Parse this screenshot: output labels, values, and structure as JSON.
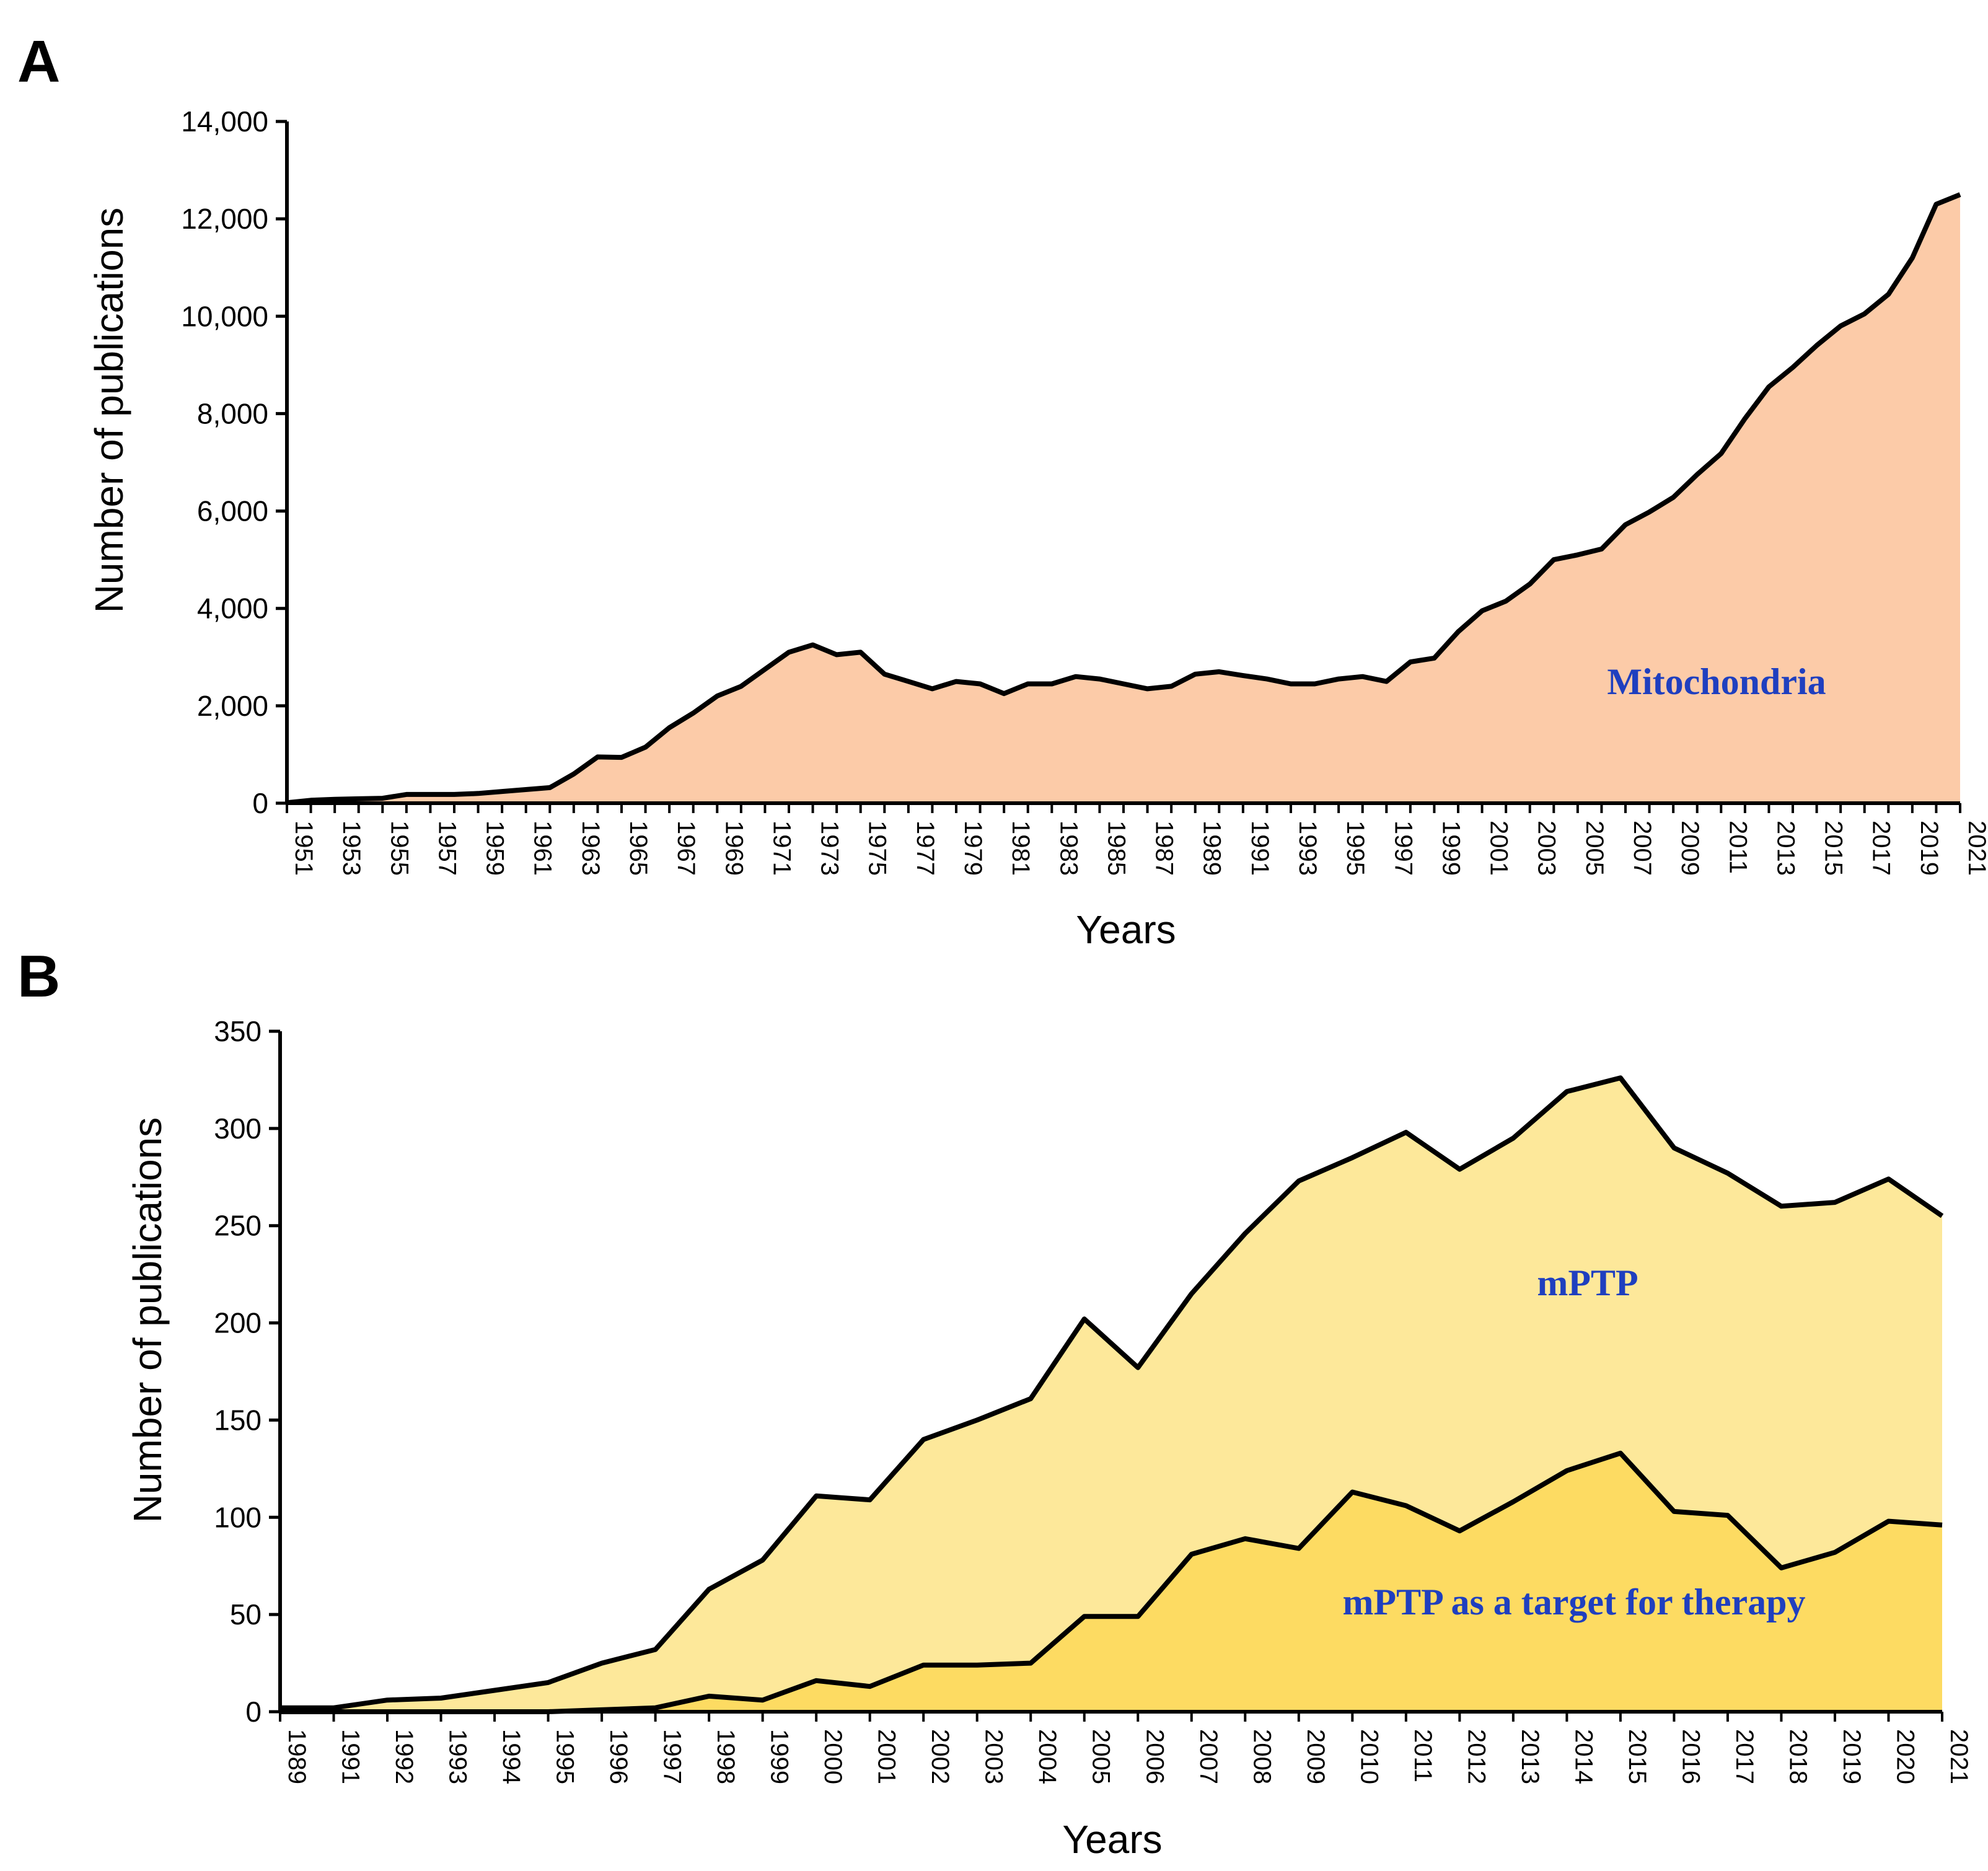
{
  "chart_data": [
    {
      "panel": "A",
      "type": "area",
      "ylabel": "Number of publications",
      "xlabel": "Years",
      "ylim": [
        0,
        14000
      ],
      "yticks": [
        "0",
        "2,000",
        "4,000",
        "6,000",
        "8,000",
        "10,000",
        "12,000",
        "14,000"
      ],
      "ytick_values": [
        0,
        2000,
        4000,
        6000,
        8000,
        10000,
        12000,
        14000
      ],
      "xtick_labels": [
        "1951",
        "1953",
        "1955",
        "1957",
        "1959",
        "1961",
        "1963",
        "1965",
        "1967",
        "1969",
        "1971",
        "1973",
        "1975",
        "1977",
        "1979",
        "1981",
        "1983",
        "1985",
        "1987",
        "1989",
        "1991",
        "1993",
        "1995",
        "1997",
        "1999",
        "2001",
        "2003",
        "2005",
        "2007",
        "2009",
        "2011",
        "2013",
        "2015",
        "2017",
        "2019",
        "2021"
      ],
      "colors": {
        "fill": "#FCCBA8",
        "stroke": "#000000",
        "annotation": "#1F3FBF"
      },
      "series": [
        {
          "name": "Mitochondria",
          "x": [
            1951,
            1952,
            1953,
            1954,
            1955,
            1956,
            1957,
            1958,
            1959,
            1960,
            1961,
            1962,
            1963,
            1964,
            1965,
            1966,
            1967,
            1968,
            1969,
            1970,
            1971,
            1972,
            1973,
            1974,
            1975,
            1976,
            1977,
            1978,
            1979,
            1980,
            1981,
            1982,
            1983,
            1984,
            1985,
            1986,
            1987,
            1988,
            1989,
            1990,
            1991,
            1992,
            1993,
            1994,
            1995,
            1996,
            1997,
            1998,
            1999,
            2000,
            2001,
            2002,
            2003,
            2004,
            2005,
            2006,
            2007,
            2008,
            2009,
            2010,
            2011,
            2012,
            2013,
            2014,
            2015,
            2016,
            2017,
            2018,
            2019,
            2020,
            2021
          ],
          "values": [
            10,
            60,
            80,
            90,
            100,
            180,
            180,
            180,
            200,
            240,
            280,
            320,
            600,
            950,
            940,
            1150,
            1550,
            1850,
            2200,
            2400,
            2750,
            3100,
            3250,
            3050,
            3100,
            2650,
            2500,
            2350,
            2500,
            2450,
            2250,
            2450,
            2450,
            2600,
            2550,
            2450,
            2350,
            2400,
            2650,
            2700,
            2620,
            2550,
            2450,
            2450,
            2550,
            2600,
            2500,
            2900,
            2980,
            3520,
            3950,
            4150,
            4500,
            5000,
            5100,
            5220,
            5720,
            5980,
            6280,
            6750,
            7180,
            7900,
            8550,
            8950,
            9400,
            9800,
            10050,
            10450,
            11200,
            12300,
            12500
          ]
        }
      ],
      "annotation": "Mitochondria"
    },
    {
      "panel": "B",
      "type": "area",
      "ylabel": "Number of publications",
      "xlabel": "Years",
      "ylim": [
        0,
        350
      ],
      "yticks": [
        "0",
        "50",
        "100",
        "150",
        "200",
        "250",
        "300",
        "350"
      ],
      "ytick_values": [
        0,
        50,
        100,
        150,
        200,
        250,
        300,
        350
      ],
      "categories": [
        "1989",
        "1991",
        "1992",
        "1993",
        "1994",
        "1995",
        "1996",
        "1997",
        "1998",
        "1999",
        "2000",
        "2001",
        "2002",
        "2003",
        "2004",
        "2005",
        "2006",
        "2007",
        "2008",
        "2009",
        "2010",
        "2011",
        "2012",
        "2013",
        "2014",
        "2015",
        "2016",
        "2017",
        "2018",
        "2019",
        "2020",
        "2021"
      ],
      "colors": {
        "back_fill": "#FDE89A",
        "front_fill": "#FDDB62",
        "stroke": "#000000",
        "annotation": "#1F3FBF"
      },
      "series": [
        {
          "name": "mPTP",
          "values": [
            2,
            2,
            6,
            7,
            11,
            15,
            25,
            32,
            63,
            78,
            111,
            109,
            140,
            150,
            161,
            202,
            177,
            215,
            246,
            273,
            285,
            298,
            279,
            295,
            319,
            326,
            290,
            277,
            260,
            262,
            274,
            255
          ]
        },
        {
          "name": "mPTP as a target for therapy",
          "values": [
            0,
            0,
            0,
            0,
            0,
            0,
            1,
            2,
            8,
            6,
            16,
            13,
            24,
            24,
            25,
            49,
            49,
            81,
            89,
            84,
            113,
            106,
            93,
            108,
            124,
            133,
            103,
            101,
            74,
            82,
            98,
            96
          ]
        }
      ],
      "annotations": [
        "mPTP",
        "mPTP as a target for therapy"
      ]
    }
  ],
  "panels": {
    "a": "A",
    "b": "B"
  }
}
